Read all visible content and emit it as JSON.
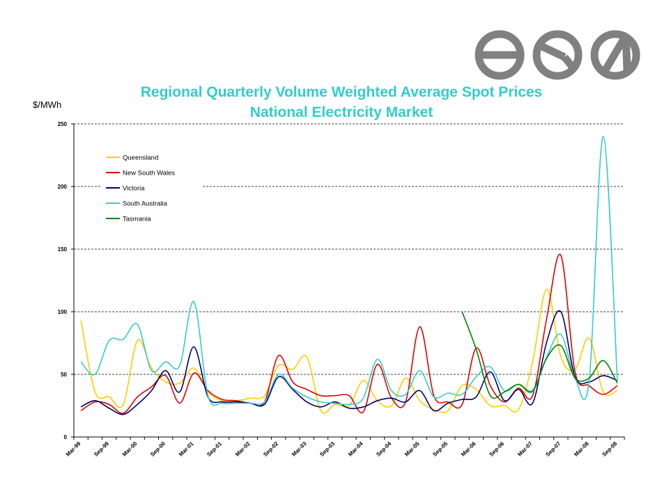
{
  "colors": {
    "title": "#33CCCC",
    "logo": "#808080",
    "grid": "#000000"
  },
  "logo": {
    "icon": "aer-logo-icon"
  },
  "chart_data": {
    "type": "line",
    "title_lines": [
      "Regional Quarterly Volume Weighted Average Spot Prices",
      "National Electricity Market"
    ],
    "ylabel": "$/MWh",
    "xlabel": "",
    "ylim": [
      0,
      250
    ],
    "yticks": [
      0,
      50,
      100,
      150,
      200,
      250
    ],
    "grid": "horizontal dashed",
    "legend_position": "top-left",
    "x_tick_labels": [
      "Mar-99",
      "Sep-99",
      "Mar-00",
      "Sep-00",
      "Mar-01",
      "Sep-01",
      "Mar-02",
      "Sep-02",
      "Mar-03",
      "Sep-03",
      "Mar-04",
      "Sep-04",
      "Mar-05",
      "Sep-05",
      "Mar-06",
      "Sep-06",
      "Mar-07",
      "Sep-07",
      "Mar-08",
      "Sep-08"
    ],
    "x": [
      "Mar-99",
      "Jun-99",
      "Sep-99",
      "Dec-99",
      "Mar-00",
      "Jun-00",
      "Sep-00",
      "Dec-00",
      "Mar-01",
      "Jun-01",
      "Sep-01",
      "Dec-01",
      "Mar-02",
      "Jun-02",
      "Sep-02",
      "Dec-02",
      "Mar-03",
      "Jun-03",
      "Sep-03",
      "Dec-03",
      "Mar-04",
      "Jun-04",
      "Sep-04",
      "Dec-04",
      "Mar-05",
      "Jun-05",
      "Sep-05",
      "Dec-05",
      "Mar-06",
      "Jun-06",
      "Sep-06",
      "Dec-06",
      "Mar-07",
      "Jun-07",
      "Sep-07",
      "Dec-07",
      "Mar-08",
      "Jun-08",
      "Sep-08"
    ],
    "series": [
      {
        "name": "Queensland",
        "color": "#FFCC00",
        "values": [
          93,
          36,
          32,
          26,
          77,
          55,
          44,
          43,
          55,
          36,
          29,
          29,
          31,
          33,
          57,
          54,
          64,
          21,
          26,
          25,
          45,
          29,
          25,
          47,
          29,
          22,
          21,
          41,
          38,
          25,
          25,
          22,
          60,
          118,
          64,
          54,
          79,
          36,
          37
        ]
      },
      {
        "name": "New South Wales",
        "color": "#DD0000",
        "values": [
          21,
          28,
          26,
          19,
          32,
          40,
          49,
          27,
          51,
          37,
          30,
          29,
          27,
          28,
          65,
          44,
          38,
          33,
          33,
          33,
          20,
          58,
          31,
          28,
          88,
          33,
          28,
          26,
          71,
          41,
          28,
          39,
          33,
          95,
          145,
          52,
          41,
          34,
          41
        ]
      },
      {
        "name": "Victoria",
        "color": "#000066",
        "values": [
          24,
          29,
          23,
          18,
          26,
          37,
          53,
          36,
          72,
          32,
          28,
          28,
          27,
          26,
          48,
          38,
          28,
          24,
          28,
          23,
          24,
          29,
          31,
          28,
          37,
          21,
          27,
          30,
          32,
          52,
          29,
          38,
          27,
          76,
          100,
          48,
          44,
          49,
          45
        ]
      },
      {
        "name": "South Australia",
        "color": "#33CCCC",
        "values": [
          60,
          50,
          77,
          78,
          90,
          53,
          60,
          57,
          108,
          33,
          27,
          27,
          27,
          28,
          50,
          39,
          32,
          28,
          27,
          26,
          31,
          62,
          37,
          34,
          53,
          32,
          35,
          34,
          48,
          56,
          37,
          42,
          36,
          64,
          82,
          47,
          45,
          240,
          45
        ]
      },
      {
        "name": "Tasmania",
        "color": "#008000",
        "values": [
          null,
          null,
          null,
          null,
          null,
          null,
          null,
          null,
          null,
          null,
          null,
          null,
          null,
          null,
          null,
          null,
          null,
          null,
          null,
          null,
          null,
          null,
          null,
          null,
          null,
          null,
          null,
          100,
          70,
          33,
          36,
          42,
          37,
          63,
          73,
          47,
          47,
          61,
          43
        ]
      }
    ]
  }
}
